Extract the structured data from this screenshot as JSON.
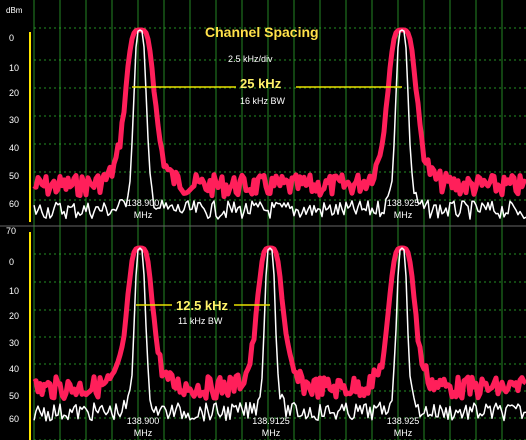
{
  "title": "Channel Spacing",
  "scale": "2.5 kHz/div",
  "unit": "dBm",
  "top_panel": {
    "spacing_label": "25 kHz",
    "bw_label": "16 kHz BW",
    "y_ticks": [
      "0",
      "10",
      "20",
      "30",
      "40",
      "50",
      "60"
    ],
    "markers": [
      {
        "freq": "138.900",
        "unit": "MHz"
      },
      {
        "freq": "138.925",
        "unit": "MHz"
      }
    ]
  },
  "bottom_panel": {
    "spacing_label": "12.5 kHz",
    "bw_label": "11 kHz BW",
    "y_ticks": [
      "70",
      "0",
      "10",
      "20",
      "30",
      "40",
      "50",
      "60"
    ],
    "markers": [
      {
        "freq": "138.900",
        "unit": "MHz"
      },
      {
        "freq": "138.9125",
        "unit": "MHz"
      },
      {
        "freq": "138.925",
        "unit": "MHz"
      }
    ]
  },
  "colors": {
    "grid": "#2fb32f",
    "axis": "#ffe600",
    "trace_wide": "#ff1f5a",
    "trace_narrow": "#ffffff",
    "annotation": "#e8e000"
  }
}
